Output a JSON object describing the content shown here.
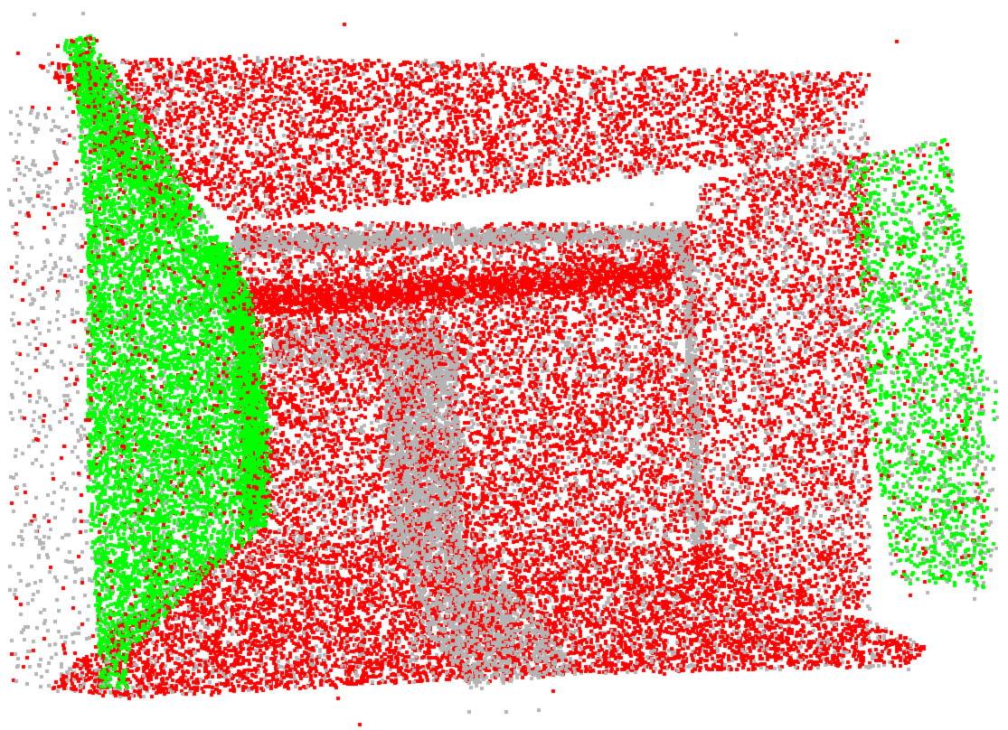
{
  "background_color": "#ffffff",
  "point_classes": [
    {
      "id": "red",
      "color": "#ff0000"
    },
    {
      "id": "gray",
      "color": "#b4b4b4"
    },
    {
      "id": "green",
      "color": "#00ff00"
    }
  ],
  "marker": "square"
}
